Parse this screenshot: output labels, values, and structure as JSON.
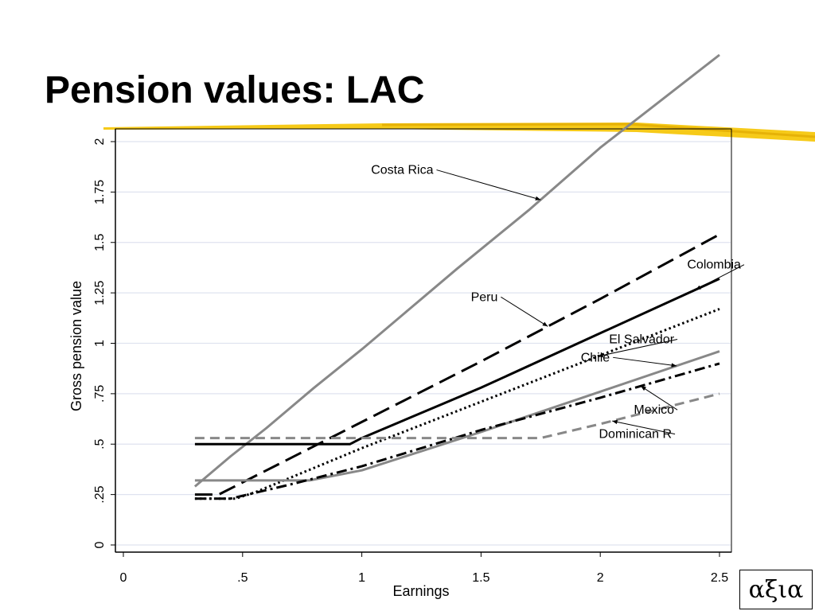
{
  "slide": {
    "title": "Pension values: LAC",
    "logo_text": "αξια",
    "accent_color": "#f5c400"
  },
  "chart_data": {
    "type": "line",
    "xlabel": "Earnings",
    "ylabel": "Gross pension value",
    "xlim": [
      0,
      2.5
    ],
    "ylim": [
      0,
      2
    ],
    "x_ticks": [
      {
        "v": 0,
        "label": "0"
      },
      {
        "v": 0.5,
        "label": ".5"
      },
      {
        "v": 1,
        "label": "1"
      },
      {
        "v": 1.5,
        "label": "1.5"
      },
      {
        "v": 2,
        "label": "2"
      },
      {
        "v": 2.5,
        "label": "2.5"
      }
    ],
    "y_ticks": [
      {
        "v": 0,
        "label": "0"
      },
      {
        "v": 0.25,
        "label": ".25"
      },
      {
        "v": 0.5,
        "label": ".5"
      },
      {
        "v": 0.75,
        "label": ".75"
      },
      {
        "v": 1,
        "label": "1"
      },
      {
        "v": 1.25,
        "label": "1.25"
      },
      {
        "v": 1.5,
        "label": "1.5"
      },
      {
        "v": 1.75,
        "label": "1.75"
      },
      {
        "v": 2,
        "label": "2"
      }
    ],
    "grid": true,
    "series": [
      {
        "name": "Costa Rica",
        "color": "#888888",
        "dash": "solid",
        "x": [
          0.3,
          0.45,
          0.6,
          0.8,
          1.0,
          1.2,
          1.4,
          1.7,
          2.0,
          2.5
        ],
        "y": [
          0.29,
          0.44,
          0.58,
          0.78,
          0.97,
          1.17,
          1.37,
          1.66,
          1.97,
          2.43
        ]
      },
      {
        "name": "Colombia",
        "color": "#000000",
        "dash": "solid",
        "x": [
          0.3,
          0.95,
          1.0,
          1.5,
          2.0,
          2.5
        ],
        "y": [
          0.5,
          0.5,
          0.53,
          0.78,
          1.05,
          1.32
        ]
      },
      {
        "name": "Peru",
        "color": "#000000",
        "dash": "long-dash",
        "x": [
          0.3,
          0.4,
          0.6,
          0.8,
          1.0,
          1.5,
          2.0,
          2.5
        ],
        "y": [
          0.25,
          0.25,
          0.37,
          0.49,
          0.61,
          0.91,
          1.22,
          1.54
        ]
      },
      {
        "name": "El Salvador",
        "color": "#000000",
        "dash": "dot",
        "x": [
          0.3,
          0.47,
          0.55,
          1.0,
          1.5,
          2.0,
          2.5
        ],
        "y": [
          0.23,
          0.23,
          0.26,
          0.48,
          0.71,
          0.94,
          1.17
        ]
      },
      {
        "name": "Chile",
        "color": "#888888",
        "dash": "solid",
        "x": [
          0.3,
          0.78,
          1.0,
          1.5,
          2.0,
          2.5
        ],
        "y": [
          0.32,
          0.32,
          0.37,
          0.56,
          0.76,
          0.96
        ]
      },
      {
        "name": "Mexico",
        "color": "#000000",
        "dash": "dash-dot",
        "x": [
          0.3,
          0.45,
          0.7,
          1.0,
          1.5,
          2.0,
          2.5
        ],
        "y": [
          0.23,
          0.23,
          0.3,
          0.39,
          0.57,
          0.73,
          0.9
        ]
      },
      {
        "name": "Dominican R",
        "color": "#888888",
        "dash": "dash",
        "x": [
          0.3,
          1.75,
          2.0,
          2.5
        ],
        "y": [
          0.53,
          0.53,
          0.6,
          0.75
        ]
      }
    ],
    "annotations": [
      {
        "text": "Costa Rica",
        "series": "Costa Rica",
        "at": 1.75,
        "label_at": [
          1.3,
          1.84
        ]
      },
      {
        "text": "Colombia",
        "series": "Colombia",
        "at": 2.4,
        "label_at": [
          2.59,
          1.37
        ]
      },
      {
        "text": "Peru",
        "series": "Peru",
        "at": 1.78,
        "label_at": [
          1.57,
          1.21
        ]
      },
      {
        "text": "El Salvador",
        "series": "El Salvador",
        "at": 1.99,
        "label_at": [
          2.31,
          1.0
        ]
      },
      {
        "text": "Chile",
        "series": "Chile",
        "at": 2.32,
        "label_at": [
          2.04,
          0.91
        ]
      },
      {
        "text": "Mexico",
        "series": "Mexico",
        "at": 2.17,
        "label_at": [
          2.31,
          0.65
        ]
      },
      {
        "text": "Dominican R",
        "series": "Dominican R",
        "at": 2.05,
        "label_at": [
          2.3,
          0.53
        ]
      }
    ]
  }
}
